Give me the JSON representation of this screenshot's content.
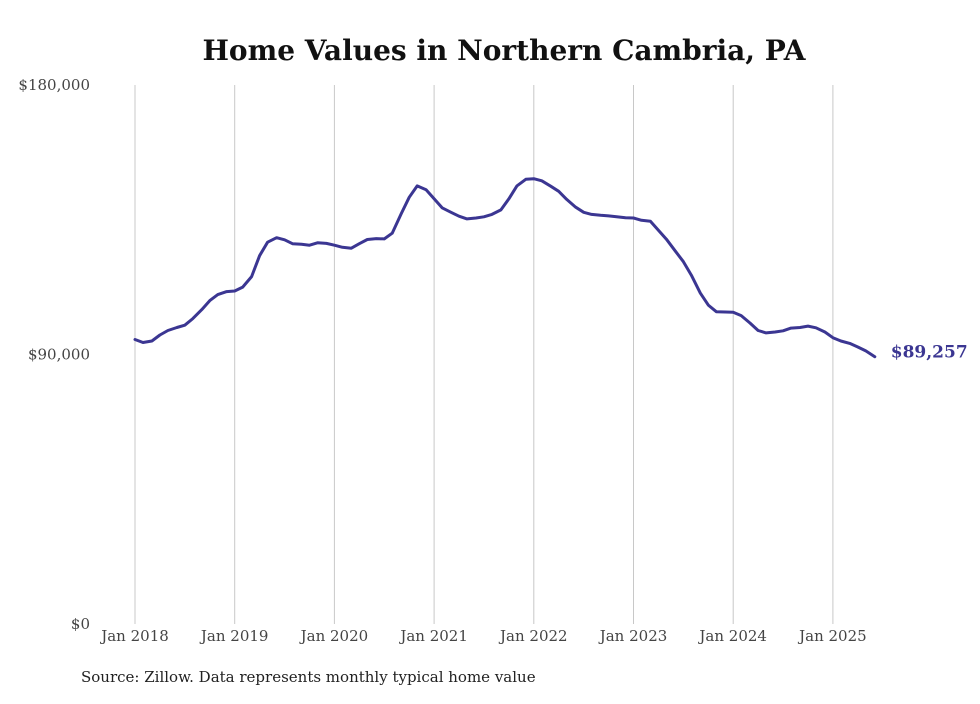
{
  "chart_data": {
    "type": "line",
    "title": "Home Values in Northern Cambria, PA",
    "xlabel": "",
    "ylabel": "",
    "ylim": [
      0,
      180000
    ],
    "xlim": [
      2018.0,
      2025.5
    ],
    "y_ticks": [
      {
        "value": 0,
        "label": "$0"
      },
      {
        "value": 90000,
        "label": "$90,000"
      },
      {
        "value": 180000,
        "label": "$180,000"
      }
    ],
    "x_ticks": [
      {
        "value": 2018,
        "label": "Jan 2018"
      },
      {
        "value": 2019,
        "label": "Jan 2019"
      },
      {
        "value": 2020,
        "label": "Jan 2020"
      },
      {
        "value": 2021,
        "label": "Jan 2021"
      },
      {
        "value": 2022,
        "label": "Jan 2022"
      },
      {
        "value": 2023,
        "label": "Jan 2023"
      },
      {
        "value": 2024,
        "label": "Jan 2024"
      },
      {
        "value": 2025,
        "label": "Jan 2025"
      }
    ],
    "grid": "vertical",
    "line_color": "#3b3692",
    "end_label": "$89,257",
    "series": [
      {
        "name": "Typical home value",
        "points": [
          [
            2018.0,
            95000
          ],
          [
            2018.08,
            94000
          ],
          [
            2018.17,
            94500
          ],
          [
            2018.25,
            96500
          ],
          [
            2018.33,
            98000
          ],
          [
            2018.42,
            99000
          ],
          [
            2018.5,
            99800
          ],
          [
            2018.58,
            102000
          ],
          [
            2018.67,
            105000
          ],
          [
            2018.75,
            108000
          ],
          [
            2018.83,
            110000
          ],
          [
            2018.92,
            111000
          ],
          [
            2019.0,
            111200
          ],
          [
            2019.08,
            112500
          ],
          [
            2019.17,
            116000
          ],
          [
            2019.25,
            123000
          ],
          [
            2019.33,
            127500
          ],
          [
            2019.42,
            129000
          ],
          [
            2019.5,
            128300
          ],
          [
            2019.58,
            127000
          ],
          [
            2019.67,
            126800
          ],
          [
            2019.75,
            126500
          ],
          [
            2019.83,
            127300
          ],
          [
            2019.92,
            127100
          ],
          [
            2020.0,
            126500
          ],
          [
            2020.08,
            125800
          ],
          [
            2020.17,
            125500
          ],
          [
            2020.25,
            127000
          ],
          [
            2020.33,
            128400
          ],
          [
            2020.42,
            128700
          ],
          [
            2020.5,
            128600
          ],
          [
            2020.58,
            130500
          ],
          [
            2020.67,
            137000
          ],
          [
            2020.75,
            142500
          ],
          [
            2020.83,
            146300
          ],
          [
            2020.92,
            145000
          ],
          [
            2021.0,
            142000
          ],
          [
            2021.08,
            139000
          ],
          [
            2021.17,
            137500
          ],
          [
            2021.25,
            136200
          ],
          [
            2021.33,
            135300
          ],
          [
            2021.42,
            135600
          ],
          [
            2021.5,
            136000
          ],
          [
            2021.58,
            136800
          ],
          [
            2021.67,
            138300
          ],
          [
            2021.75,
            142000
          ],
          [
            2021.83,
            146300
          ],
          [
            2021.92,
            148500
          ],
          [
            2022.0,
            148700
          ],
          [
            2022.08,
            148000
          ],
          [
            2022.17,
            146200
          ],
          [
            2022.25,
            144500
          ],
          [
            2022.33,
            141800
          ],
          [
            2022.42,
            139200
          ],
          [
            2022.5,
            137500
          ],
          [
            2022.58,
            136800
          ],
          [
            2022.67,
            136500
          ],
          [
            2022.75,
            136300
          ],
          [
            2022.83,
            136000
          ],
          [
            2022.92,
            135700
          ],
          [
            2023.0,
            135600
          ],
          [
            2023.08,
            134800
          ],
          [
            2023.17,
            134500
          ],
          [
            2023.25,
            131500
          ],
          [
            2023.33,
            128500
          ],
          [
            2023.42,
            124500
          ],
          [
            2023.5,
            121000
          ],
          [
            2023.58,
            116500
          ],
          [
            2023.67,
            110500
          ],
          [
            2023.75,
            106500
          ],
          [
            2023.83,
            104300
          ],
          [
            2023.92,
            104200
          ],
          [
            2024.0,
            104100
          ],
          [
            2024.08,
            103000
          ],
          [
            2024.17,
            100500
          ],
          [
            2024.25,
            98000
          ],
          [
            2024.33,
            97200
          ],
          [
            2024.42,
            97500
          ],
          [
            2024.5,
            97900
          ],
          [
            2024.58,
            98800
          ],
          [
            2024.67,
            99000
          ],
          [
            2024.75,
            99500
          ],
          [
            2024.83,
            98900
          ],
          [
            2024.92,
            97500
          ],
          [
            2025.0,
            95600
          ],
          [
            2025.08,
            94500
          ],
          [
            2025.17,
            93700
          ],
          [
            2025.25,
            92500
          ],
          [
            2025.33,
            91200
          ],
          [
            2025.42,
            89257
          ]
        ]
      }
    ]
  },
  "footer": {
    "source": "Source: Zillow. Data represents monthly typical home value"
  }
}
